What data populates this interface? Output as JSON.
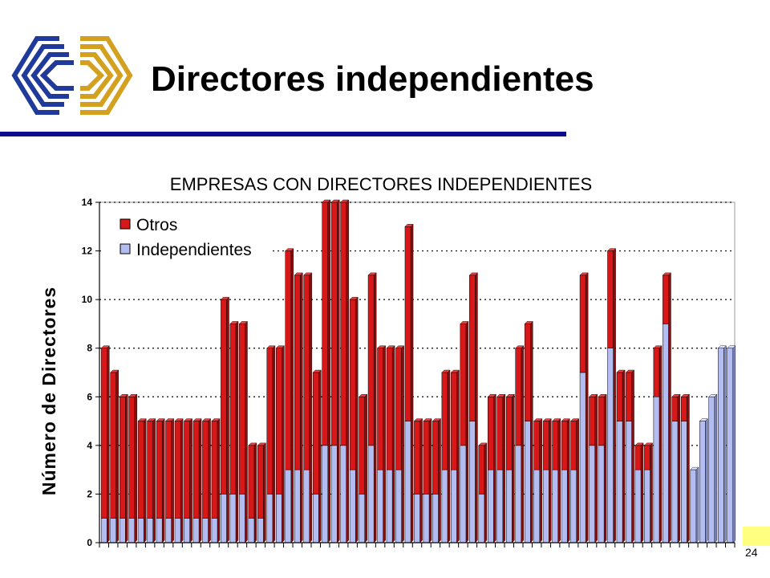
{
  "slide": {
    "title": "Directores independientes",
    "page_number": "24",
    "colors": {
      "title_rule": "#0c0c8c",
      "logo_blue": "#1f3a9a",
      "logo_gold": "#d4a020"
    }
  },
  "logo": {
    "icon": "company-logo-icon"
  },
  "chart_data": {
    "type": "bar",
    "stacked": true,
    "title": "EMPRESAS CON DIRECTORES INDEPENDIENTES",
    "xlabel": "",
    "ylabel": "Número de Directores",
    "ylim": [
      0,
      14
    ],
    "yticks": [
      0,
      2,
      4,
      6,
      8,
      10,
      12,
      14
    ],
    "grid": "horizontal dotted",
    "legend_position": "top-left",
    "series": [
      {
        "name": "Independientes",
        "color": "#b4bdf2",
        "values": [
          1,
          1,
          1,
          1,
          1,
          1,
          1,
          1,
          1,
          1,
          1,
          1,
          1,
          2,
          2,
          2,
          1,
          1,
          2,
          2,
          3,
          3,
          3,
          2,
          4,
          4,
          4,
          3,
          2,
          4,
          3,
          3,
          3,
          5,
          2,
          2,
          2,
          3,
          3,
          4,
          5,
          2,
          3,
          3,
          3,
          4,
          5,
          3,
          3,
          3,
          3,
          3,
          7,
          4,
          4,
          8,
          5,
          5,
          3,
          3,
          6,
          9,
          5,
          5,
          3,
          5,
          6,
          8,
          8
        ]
      },
      {
        "name": "Otros",
        "color": "#d81818",
        "values": [
          7,
          6,
          5,
          5,
          4,
          4,
          4,
          4,
          4,
          4,
          4,
          4,
          4,
          8,
          7,
          7,
          3,
          3,
          6,
          6,
          9,
          8,
          8,
          5,
          10,
          10,
          10,
          7,
          4,
          7,
          5,
          5,
          5,
          8,
          3,
          3,
          3,
          4,
          4,
          5,
          6,
          2,
          3,
          3,
          3,
          4,
          4,
          2,
          2,
          2,
          2,
          2,
          4,
          2,
          2,
          4,
          2,
          2,
          1,
          1,
          2,
          2,
          1,
          1,
          0,
          0,
          0,
          0,
          0
        ]
      }
    ]
  }
}
